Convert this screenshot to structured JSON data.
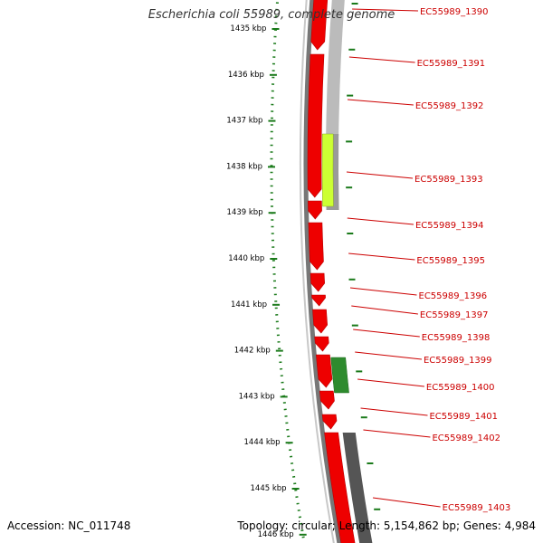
{
  "title": "Escherichia coli 55989, complete genome",
  "footer": {
    "accession": "Accession: NC_011748",
    "summary": "Topology: circular; Length: 5,154,862 bp; Genes: 4,984"
  },
  "ticks": [
    "1435 kbp",
    "1436 kbp",
    "1437 kbp",
    "1438 kbp",
    "1439 kbp",
    "1440 kbp",
    "1441 kbp",
    "1442 kbp",
    "1443 kbp",
    "1444 kbp",
    "1445 kbp",
    "1446 kbp"
  ],
  "gene_labels": [
    "EC55989_1390",
    "EC55989_1391",
    "EC55989_1392",
    "EC55989_1393",
    "EC55989_1394",
    "EC55989_1395",
    "EC55989_1396",
    "EC55989_1397",
    "EC55989_1398",
    "EC55989_1399",
    "EC55989_1400",
    "EC55989_1401",
    "EC55989_1402",
    "EC55989_1403"
  ],
  "colors": {
    "cds": "#ee0000",
    "cds_dark": "#b80000",
    "backbone": "#777777",
    "gray_feature": "#bbbbbb",
    "dark_gray_feature": "#555555",
    "lime_feature": "#ccff33",
    "green_feature": "#2e8b2e",
    "tick_green": "#1a7a1a",
    "label_red": "#cc0000"
  }
}
